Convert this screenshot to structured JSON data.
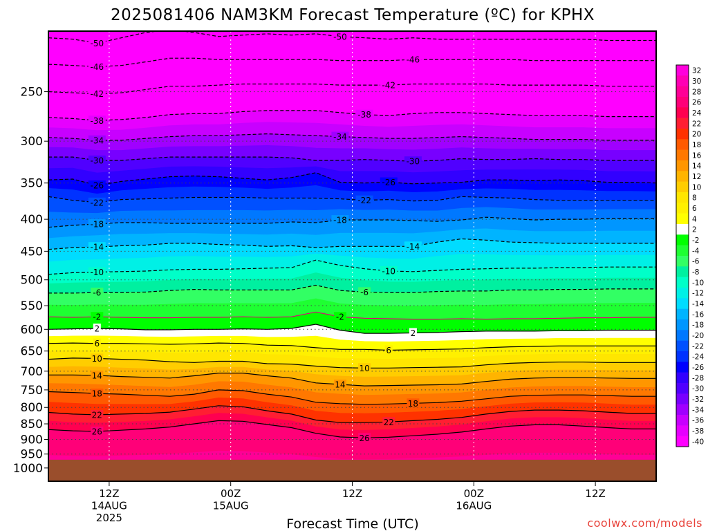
{
  "title": "2025081406 NAM3KM Forecast Temperature (ºC) for KPHX",
  "credit": "coolwx.com/models",
  "chart_data": {
    "type": "heatmap",
    "title": "2025081406 NAM3KM Forecast Temperature (ºC) for KPHX",
    "xlabel": "Forecast Time (UTC)",
    "ylabel": "",
    "y_log_pressure": true,
    "y_reversed": true,
    "xlim_hours": [
      0,
      60
    ],
    "ylim_hpa": [
      1050,
      200
    ],
    "y_ticks": [
      250,
      300,
      350,
      400,
      450,
      500,
      550,
      600,
      650,
      700,
      750,
      800,
      850,
      900,
      950,
      1000
    ],
    "x_ticks": [
      {
        "hour": 6,
        "lines": [
          "12Z",
          "14AUG",
          "2025"
        ]
      },
      {
        "hour": 18,
        "lines": [
          "00Z",
          "15AUG"
        ]
      },
      {
        "hour": 30,
        "lines": [
          "12Z"
        ]
      },
      {
        "hour": 42,
        "lines": [
          "00Z",
          "16AUG"
        ]
      },
      {
        "hour": 54,
        "lines": [
          "12Z"
        ]
      }
    ],
    "ground_pressure_hpa": 970,
    "ground_color": "#9a4e2c",
    "colorbar": {
      "labels": [
        32,
        30,
        28,
        26,
        24,
        22,
        20,
        18,
        16,
        14,
        12,
        10,
        8,
        6,
        4,
        2,
        -2,
        -4,
        -6,
        -8,
        -10,
        -12,
        -14,
        -16,
        -18,
        -20,
        -22,
        -24,
        -26,
        -28,
        -30,
        -32,
        -34,
        -36,
        -38,
        -40
      ],
      "colors": [
        "#ff00dc",
        "#ff00b4",
        "#ff0096",
        "#ff0078",
        "#ff0050",
        "#ff1e32",
        "#ff3200",
        "#ff5a00",
        "#ff7800",
        "#ff9600",
        "#ffb400",
        "#ffcd00",
        "#ffe600",
        "#fff000",
        "#ffff00",
        "#ffffff",
        "#00ff00",
        "#1eff32",
        "#32ff64",
        "#00f0a0",
        "#00ffc8",
        "#00f0e6",
        "#00dcff",
        "#00b4ff",
        "#0096ff",
        "#0078ff",
        "#0050ff",
        "#0032ff",
        "#0000ff",
        "#3200ff",
        "#5000ff",
        "#7800ff",
        "#a000ff",
        "#c800ff",
        "#e600ff",
        "#ff00ff"
      ]
    },
    "contours": [
      {
        "value": -50,
        "label": "-50",
        "dashed": true,
        "pressure": [
          205,
          206,
          209,
          205,
          201,
          199,
          201,
          204,
          203,
          202,
          203,
          202,
          204,
          205,
          206,
          205,
          206,
          206,
          206,
          206,
          206,
          206,
          206,
          207,
          207,
          207
        ]
      },
      {
        "value": -46,
        "label": "-46",
        "dashed": true,
        "pressure": [
          226,
          227,
          228,
          227,
          224,
          221,
          221,
          222,
          222,
          222,
          222,
          222,
          223,
          223,
          223,
          222,
          222,
          222,
          222,
          222,
          223,
          223,
          223,
          223,
          223,
          223
        ]
      },
      {
        "value": -42,
        "label": "-42",
        "dashed": true,
        "pressure": [
          250,
          251,
          252,
          251,
          248,
          245,
          245,
          244,
          243,
          243,
          243,
          243,
          244,
          244,
          244,
          243,
          243,
          243,
          243,
          244,
          244,
          244,
          244,
          245,
          245,
          245
        ]
      },
      {
        "value": -38,
        "label": "-38",
        "dashed": true,
        "pressure": [
          275,
          276,
          278,
          277,
          275,
          272,
          271,
          271,
          269,
          268,
          268,
          268,
          270,
          272,
          273,
          271,
          270,
          270,
          271,
          272,
          273,
          273,
          273,
          274,
          274,
          274
        ]
      },
      {
        "value": -34,
        "label": "-34",
        "dashed": true,
        "pressure": [
          296,
          297,
          299,
          299,
          297,
          295,
          294,
          294,
          293,
          292,
          293,
          294,
          295,
          296,
          297,
          297,
          296,
          295,
          296,
          297,
          298,
          298,
          298,
          299,
          299,
          299
        ]
      },
      {
        "value": -30,
        "label": "-30",
        "dashed": true,
        "pressure": [
          318,
          318,
          322,
          322,
          320,
          318,
          318,
          318,
          318,
          318,
          319,
          322,
          322,
          321,
          322,
          323,
          322,
          320,
          321,
          321,
          320,
          321,
          321,
          322,
          322,
          322
        ]
      },
      {
        "value": -26,
        "label": "-26",
        "dashed": true,
        "pressure": [
          346,
          345,
          353,
          348,
          345,
          342,
          341,
          342,
          344,
          346,
          343,
          337,
          349,
          350,
          349,
          351,
          350,
          349,
          346,
          346,
          347,
          346,
          347,
          349,
          349,
          350
        ]
      },
      {
        "value": -22,
        "label": "-22",
        "dashed": true,
        "pressure": [
          368,
          373,
          376,
          372,
          371,
          370,
          369,
          369,
          369,
          370,
          370,
          370,
          371,
          373,
          372,
          374,
          373,
          368,
          369,
          370,
          372,
          373,
          373,
          373,
          373,
          373
        ]
      },
      {
        "value": -18,
        "label": "-18",
        "dashed": true,
        "pressure": [
          412,
          409,
          407,
          405,
          405,
          406,
          406,
          406,
          406,
          406,
          404,
          405,
          401,
          401,
          401,
          402,
          403,
          401,
          397,
          399,
          401,
          400,
          400,
          399,
          399,
          399
        ]
      },
      {
        "value": -14,
        "label": "-14",
        "dashed": true,
        "pressure": [
          447,
          444,
          443,
          441,
          440,
          437,
          437,
          439,
          440,
          442,
          441,
          444,
          442,
          442,
          442,
          442,
          435,
          430,
          432,
          435,
          436,
          437,
          437,
          437,
          437,
          437
        ]
      },
      {
        "value": -10,
        "label": "-10",
        "dashed": true,
        "pressure": [
          490,
          487,
          486,
          485,
          484,
          482,
          481,
          481,
          480,
          479,
          478,
          465,
          474,
          480,
          484,
          485,
          483,
          481,
          480,
          479,
          479,
          478,
          478,
          477,
          477,
          477
        ]
      },
      {
        "value": -6,
        "label": "-6",
        "dashed": true,
        "pressure": [
          525,
          525,
          524,
          524,
          523,
          520,
          518,
          519,
          519,
          519,
          519,
          510,
          520,
          523,
          524,
          524,
          522,
          521,
          521,
          519,
          519,
          518,
          518,
          517,
          517,
          517
        ]
      },
      {
        "value": -2,
        "label": "-2",
        "dashed": false,
        "pressure": [
          573,
          574,
          573,
          574,
          575,
          575,
          574,
          574,
          573,
          574,
          573,
          563,
          573,
          576,
          577,
          578,
          578,
          577,
          578,
          577,
          577,
          576,
          575,
          575,
          574,
          574
        ]
      },
      {
        "value": 2,
        "label": "2",
        "dashed": false,
        "pressure": [
          600,
          599,
          598,
          599,
          601,
          601,
          600,
          600,
          599,
          600,
          598,
          589,
          602,
          609,
          609,
          608,
          607,
          605,
          604,
          604,
          604,
          603,
          603,
          602,
          602,
          602
        ]
      },
      {
        "value": 6,
        "label": "6",
        "dashed": false,
        "pressure": [
          632,
          631,
          632,
          632,
          633,
          634,
          633,
          631,
          632,
          636,
          637,
          642,
          646,
          646,
          648,
          647,
          646,
          645,
          642,
          640,
          639,
          638,
          638,
          638,
          638,
          638
        ]
      },
      {
        "value": 10,
        "label": "10",
        "dashed": false,
        "pressure": [
          670,
          667,
          668,
          670,
          672,
          676,
          678,
          675,
          675,
          681,
          682,
          687,
          691,
          692,
          692,
          691,
          690,
          689,
          684,
          680,
          678,
          677,
          677,
          678,
          678,
          678
        ]
      },
      {
        "value": 14,
        "label": "14",
        "dashed": false,
        "pressure": [
          710,
          710,
          711,
          714,
          716,
          718,
          712,
          705,
          705,
          712,
          718,
          731,
          735,
          739,
          738,
          737,
          736,
          734,
          727,
          721,
          718,
          717,
          717,
          718,
          719,
          719
        ]
      },
      {
        "value": 18,
        "label": "18",
        "dashed": false,
        "pressure": [
          755,
          757,
          760,
          762,
          765,
          768,
          762,
          750,
          752,
          762,
          770,
          785,
          789,
          791,
          790,
          788,
          786,
          782,
          775,
          768,
          765,
          764,
          764,
          766,
          768,
          768
        ]
      },
      {
        "value": 22,
        "label": "22",
        "dashed": false,
        "pressure": [
          815,
          820,
          822,
          820,
          818,
          814,
          805,
          795,
          798,
          810,
          820,
          838,
          846,
          846,
          844,
          840,
          836,
          830,
          820,
          812,
          808,
          808,
          810,
          814,
          818,
          818
        ]
      },
      {
        "value": 26,
        "label": "26",
        "dashed": false,
        "pressure": [
          868,
          872,
          874,
          870,
          866,
          860,
          850,
          840,
          842,
          852,
          862,
          880,
          892,
          895,
          893,
          888,
          883,
          876,
          866,
          857,
          853,
          853,
          857,
          862,
          866,
          866
        ]
      }
    ]
  }
}
